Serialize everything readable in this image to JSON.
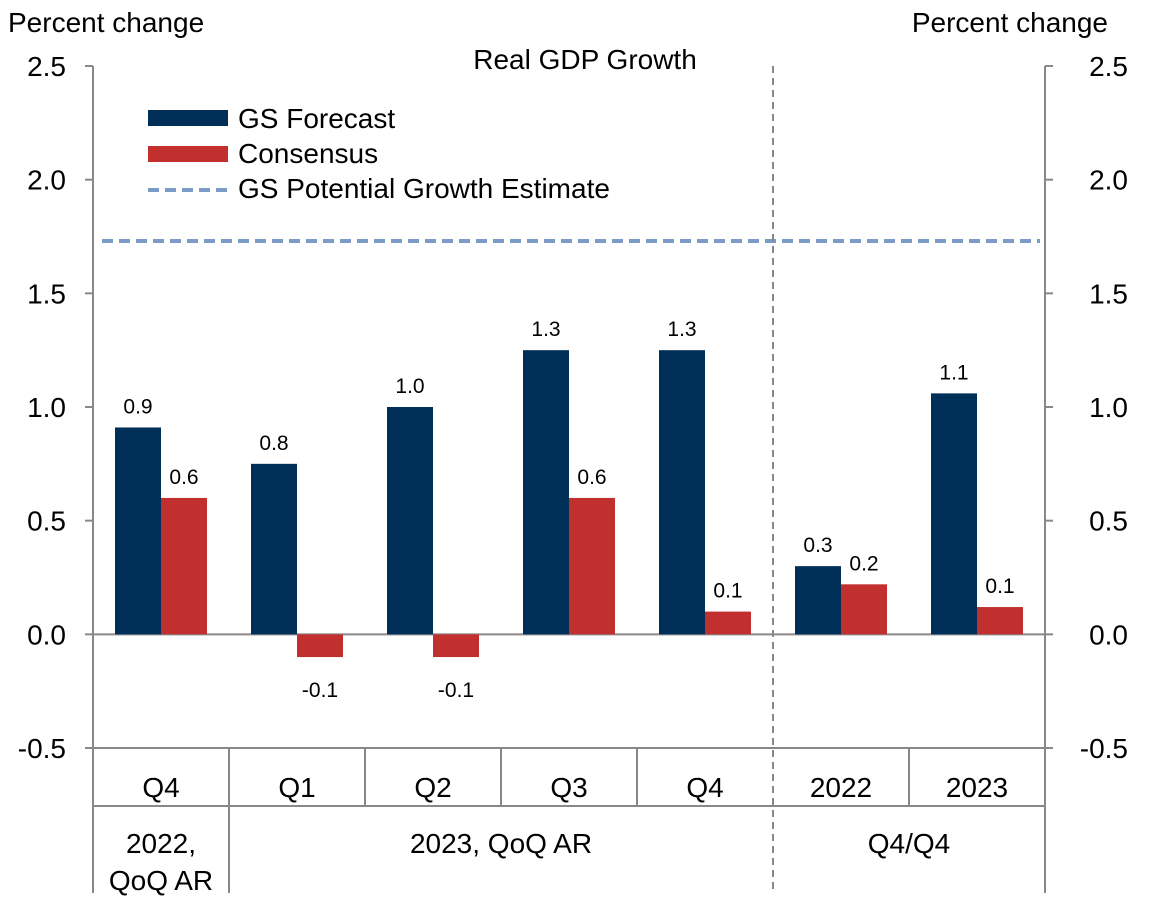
{
  "chart_data": {
    "type": "bar",
    "title": "Real GDP Growth",
    "ylabel_left": "Percent change",
    "ylabel_right": "Percent change",
    "ylim": [
      -0.5,
      2.5
    ],
    "yticks": [
      "2.5",
      "2.0",
      "1.5",
      "1.0",
      "0.5",
      "0.0",
      "-0.5"
    ],
    "ytick_values": [
      2.5,
      2.0,
      1.5,
      1.0,
      0.5,
      0.0,
      -0.5
    ],
    "categories": [
      "Q4",
      "Q1",
      "Q2",
      "Q3",
      "Q4",
      "2022",
      "2023"
    ],
    "groups": [
      {
        "label_lines": [
          "2022,",
          "QoQ AR"
        ],
        "span": [
          0,
          0
        ]
      },
      {
        "label_lines": [
          "2023, QoQ AR"
        ],
        "span": [
          1,
          4
        ]
      },
      {
        "label_lines": [
          "Q4/Q4"
        ],
        "span": [
          5,
          6
        ]
      }
    ],
    "series": [
      {
        "name": "GS Forecast",
        "color": "#003057",
        "values": [
          0.91,
          0.75,
          1.0,
          1.25,
          1.25,
          0.3,
          1.06
        ],
        "labels": [
          "0.9",
          "0.8",
          "1.0",
          "1.3",
          "1.3",
          "0.3",
          "1.1"
        ]
      },
      {
        "name": "Consensus",
        "color": "#c1302e",
        "values": [
          0.6,
          -0.1,
          -0.1,
          0.6,
          0.1,
          0.22,
          0.12
        ],
        "labels": [
          "0.6",
          "-0.1",
          "-0.1",
          "0.6",
          "0.1",
          "0.2",
          "0.1"
        ]
      }
    ],
    "reference_line": {
      "name": "GS Potential Growth Estimate",
      "value": 1.73,
      "color": "#7a9cc6",
      "style": "dashed"
    },
    "divider_after_category": 4,
    "legend_position": "top-left"
  }
}
